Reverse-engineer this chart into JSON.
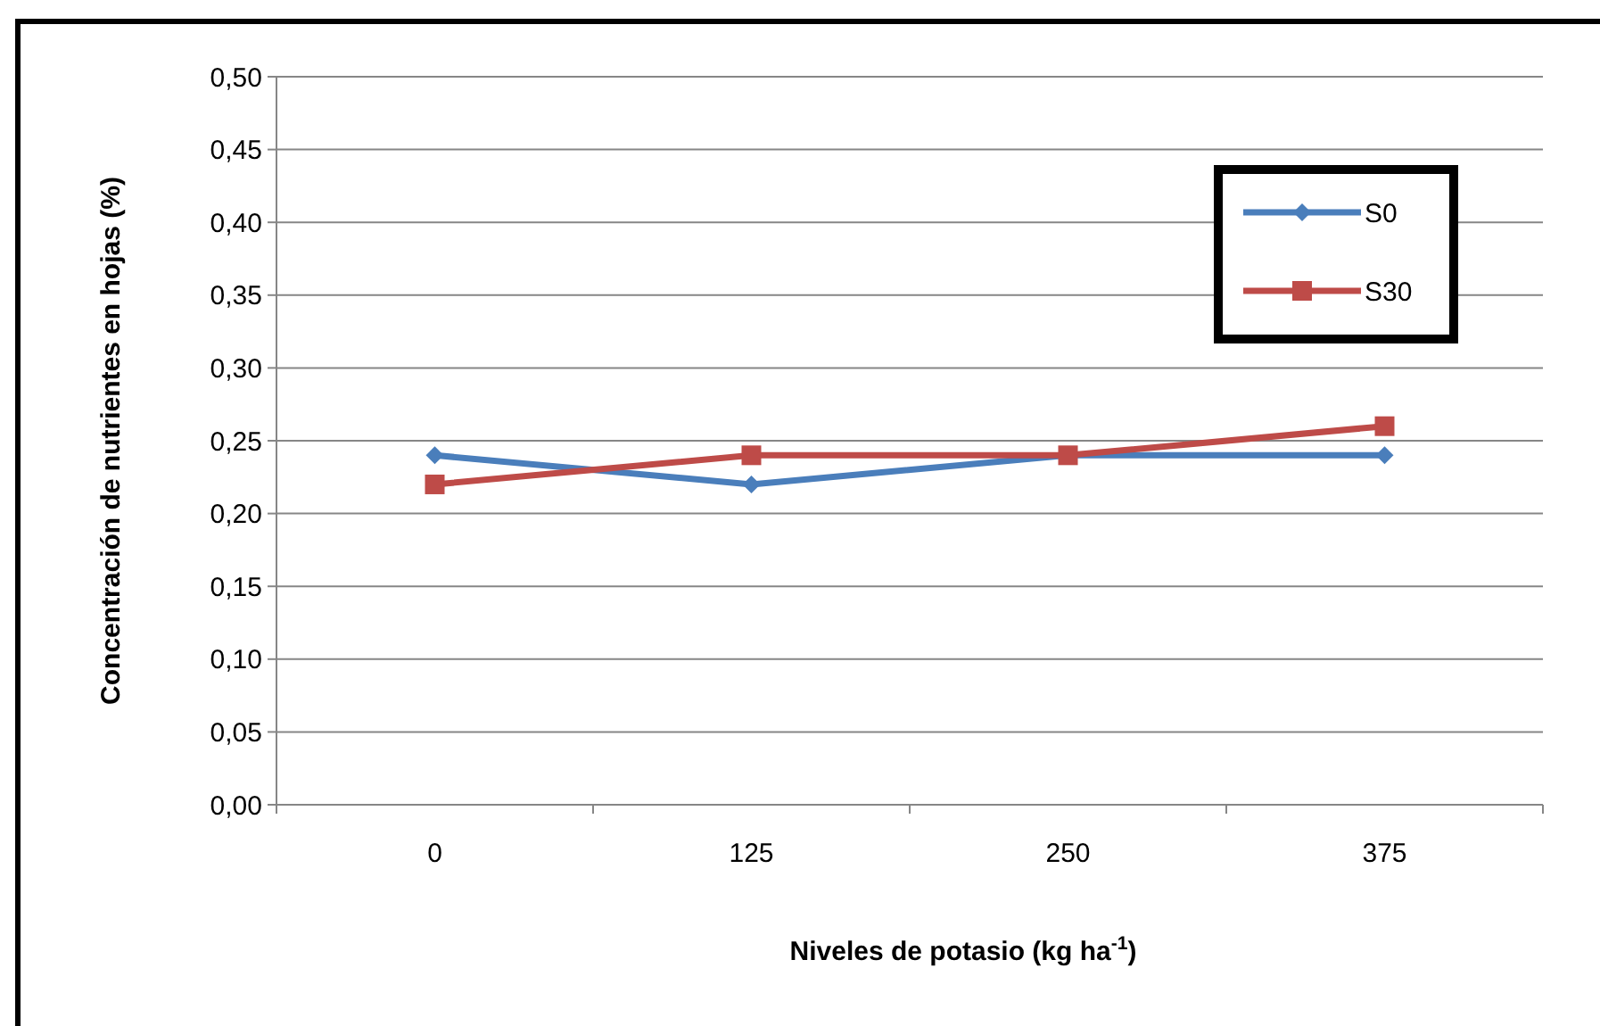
{
  "chart_data": {
    "type": "line",
    "xlabel": "Niveles de potasio (kg ha$^{-1}$)",
    "ylabel": "Concentración de nutrientes en hojas (%)",
    "categories": [
      "0",
      "125",
      "250",
      "375"
    ],
    "series": [
      {
        "name": "S0",
        "color": "#4a7ebb",
        "values": [
          0.24,
          0.22,
          0.24,
          0.24
        ],
        "marker": "diamond"
      },
      {
        "name": "S30",
        "color": "#be4b48",
        "values": [
          0.22,
          0.24,
          0.24,
          0.26
        ],
        "marker": "square"
      }
    ],
    "ylim": [
      0,
      0.5
    ],
    "yticks": [
      {
        "value": 0,
        "label": "0,00"
      },
      {
        "value": 0.05,
        "label": "0,05"
      },
      {
        "value": 0.1,
        "label": "0,10"
      },
      {
        "value": 0.15,
        "label": "0,15"
      },
      {
        "value": 0.2,
        "label": "0,20"
      },
      {
        "value": 0.25,
        "label": "0,25"
      },
      {
        "value": 0.3,
        "label": "0,30"
      },
      {
        "value": 0.35,
        "label": "0,35"
      },
      {
        "value": 0.4,
        "label": "0,40"
      },
      {
        "value": 0.45,
        "label": "0,45"
      },
      {
        "value": 0.5,
        "label": "0,50"
      }
    ],
    "grid": "y",
    "legend": "top right",
    "line_style": "solid"
  }
}
